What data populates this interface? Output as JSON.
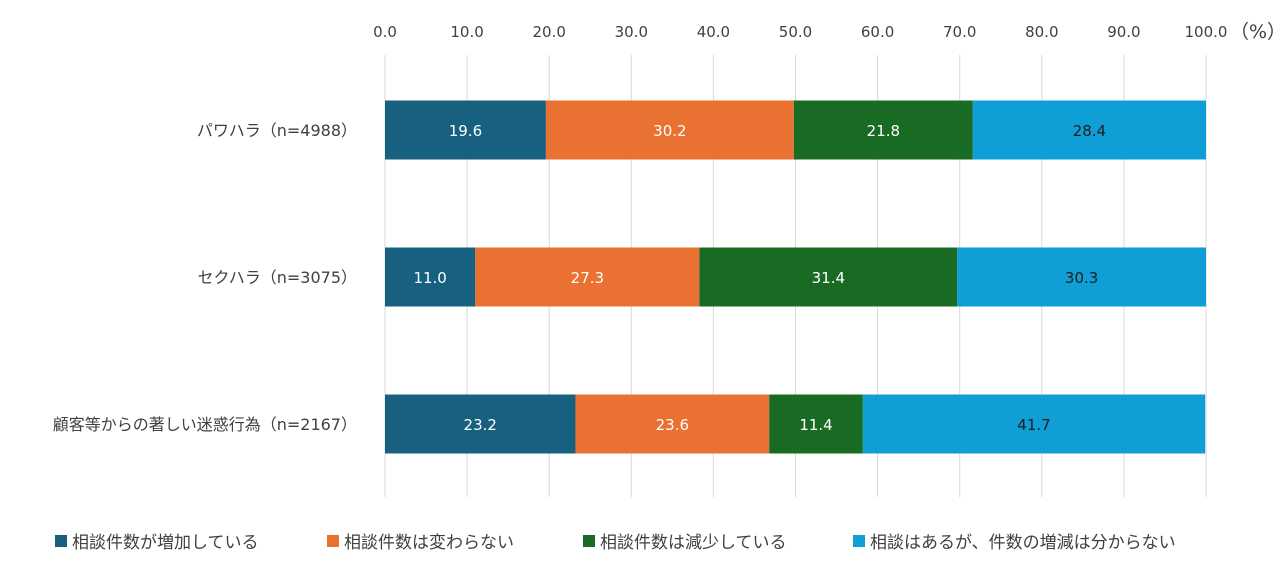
{
  "chart_data": {
    "type": "bar",
    "orientation": "horizontal",
    "stacked": true,
    "x_unit": "（%）",
    "xlim": [
      0,
      100
    ],
    "xticks": [
      "0.0",
      "10.0",
      "20.0",
      "30.0",
      "40.0",
      "50.0",
      "60.0",
      "70.0",
      "80.0",
      "90.0",
      "100.0"
    ],
    "grid": true,
    "legend_position": "bottom",
    "categories": [
      "パワハラ（n=4988）",
      "セクハラ（n=3075）",
      "顧客等からの著しい迷惑行為（n=2167）"
    ],
    "series": [
      {
        "name": "相談件数が増加している",
        "values": [
          19.6,
          11.0,
          23.2
        ],
        "labels": [
          "19.6",
          "11.0",
          "23.2"
        ],
        "color": "#17607f",
        "label_color": "#ffffff"
      },
      {
        "name": "相談件数は変わらない",
        "values": [
          30.2,
          27.3,
          23.6
        ],
        "labels": [
          "30.2",
          "27.3",
          "23.6"
        ],
        "color": "#e97132",
        "label_color": "#ffffff"
      },
      {
        "name": "相談件数は減少している",
        "values": [
          21.8,
          31.4,
          11.4
        ],
        "labels": [
          "21.8",
          "31.4",
          "11.4"
        ],
        "color": "#196b24",
        "label_color": "#ffffff"
      },
      {
        "name": "相談はあるが、件数の増減は分からない",
        "values": [
          28.4,
          30.3,
          41.7
        ],
        "labels": [
          "28.4",
          "30.3",
          "41.7"
        ],
        "color": "#0f9ed5",
        "label_color": "#1f1f1f"
      }
    ]
  }
}
